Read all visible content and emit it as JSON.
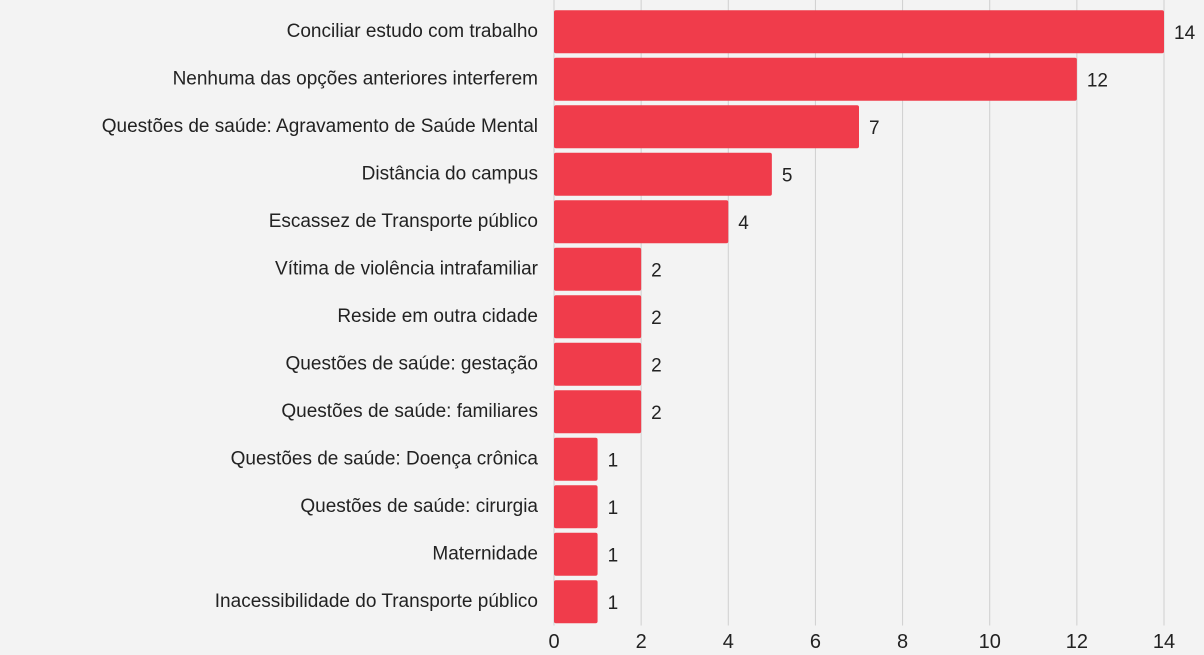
{
  "chart_data": {
    "type": "bar",
    "orientation": "horizontal",
    "categories": [
      "Conciliar estudo com trabalho",
      "Nenhuma das opções anteriores interferem",
      "Questões de saúde: Agravamento de Saúde Mental",
      "Distância do campus",
      "Escassez de Transporte público",
      "Vítima de violência intrafamiliar",
      "Reside em outra cidade",
      "Questões de saúde: gestação",
      "Questões de saúde: familiares",
      "Questões de saúde: Doença crônica",
      "Questões de saúde: cirurgia",
      "Maternidade",
      "Inacessibilidade do Transporte público"
    ],
    "values": [
      14,
      12,
      7,
      5,
      4,
      2,
      2,
      2,
      2,
      1,
      1,
      1,
      1
    ],
    "color": "#f03c4b",
    "xlim": [
      0,
      14
    ],
    "xticks": [
      0,
      2,
      4,
      6,
      8,
      10,
      12,
      14
    ],
    "grid": true
  }
}
